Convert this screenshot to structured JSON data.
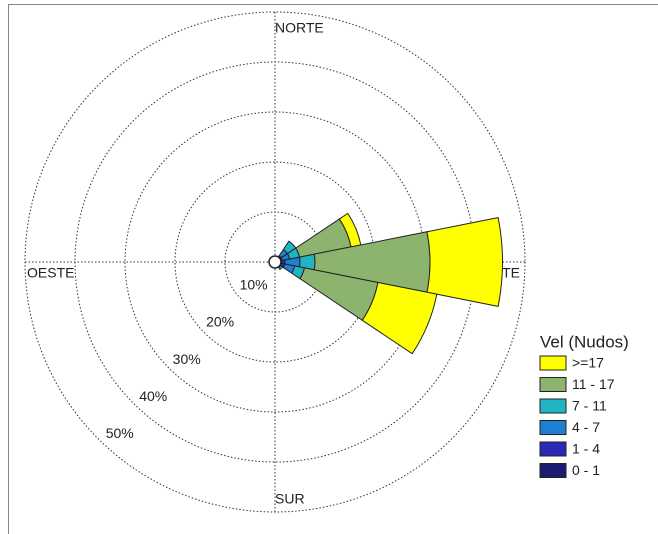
{
  "chart_data": {
    "type": "windrose",
    "x": [
      0,
      22.5,
      45,
      67.5,
      90,
      112.5,
      135,
      157.5,
      180,
      202.5,
      225,
      247.5,
      270,
      292.5,
      315,
      337.5
    ],
    "xticks": [
      {
        "value": 0,
        "label": "NORTE"
      },
      {
        "value": 90,
        "label": "ESTE"
      },
      {
        "value": 180,
        "label": "SUR"
      },
      {
        "value": 270,
        "label": "OESTE"
      }
    ],
    "ylim": [
      0,
      50
    ],
    "yticks": [
      {
        "value": 10,
        "label": "10%"
      },
      {
        "value": 20,
        "label": "20%"
      },
      {
        "value": 30,
        "label": "30%"
      },
      {
        "value": 40,
        "label": "40%"
      },
      {
        "value": 50,
        "label": "50%"
      }
    ],
    "legend_title": "Vel (Nudos)",
    "series": [
      {
        "name": "0 - 1",
        "color": "#1c1c70",
        "values": [
          0.2,
          0.2,
          0.5,
          0.5,
          0.5,
          0.5,
          0.3,
          0.2,
          0.2,
          0.2,
          0.2,
          0.2,
          0.2,
          0.2,
          0.2,
          0.2
        ]
      },
      {
        "name": "1 - 4",
        "color": "#2a2ab4",
        "values": [
          0.3,
          0.5,
          1,
          1,
          1.5,
          1.5,
          0.5,
          0.3,
          0.2,
          0.2,
          0.2,
          0.2,
          0.2,
          0.2,
          0.2,
          0.2
        ]
      },
      {
        "name": "4 - 7",
        "color": "#1f7fd2",
        "values": [
          0,
          0.5,
          1.5,
          1.5,
          3,
          2,
          0.5,
          0,
          0,
          0,
          0,
          0,
          0,
          0,
          0,
          0
        ]
      },
      {
        "name": "7 - 11",
        "color": "#20b4c4",
        "values": [
          0,
          0,
          2,
          2,
          3,
          2,
          0.5,
          0,
          0,
          0,
          0,
          0,
          0,
          0,
          0,
          0
        ]
      },
      {
        "name": "11 - 17",
        "color": "#8db46e",
        "values": [
          0,
          0,
          0,
          10.5,
          23,
          15,
          0,
          0,
          0,
          0,
          0,
          0,
          0,
          0,
          0,
          0
        ]
      },
      {
        "name": ">=17",
        "color": "#ffff00",
        "values": [
          0,
          0,
          0,
          2,
          14.5,
          12,
          0,
          0,
          0,
          0,
          0,
          0,
          0,
          0,
          0,
          0
        ]
      }
    ]
  }
}
